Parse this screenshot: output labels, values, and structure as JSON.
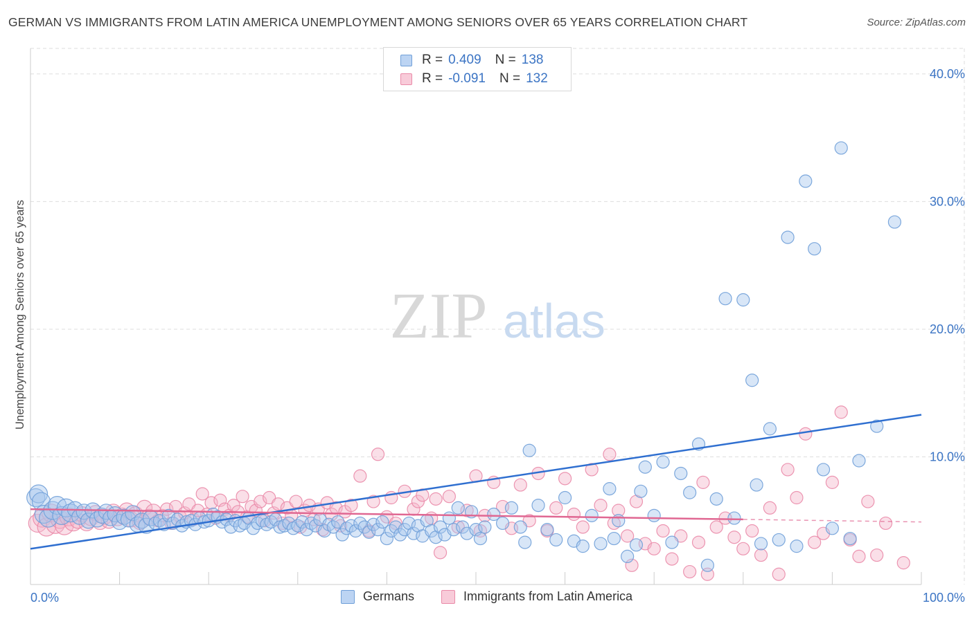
{
  "title": "GERMAN VS IMMIGRANTS FROM LATIN AMERICA UNEMPLOYMENT AMONG SENIORS OVER 65 YEARS CORRELATION CHART",
  "source": "Source: ZipAtlas.com",
  "watermark": {
    "zip": "ZIP",
    "atlas": "atlas"
  },
  "legend_top": [
    {
      "r_label": "R =",
      "r_value": "0.409",
      "n_label": "N =",
      "n_value": "138"
    },
    {
      "r_label": "R =",
      "r_value": "-0.091",
      "n_label": "N =",
      "n_value": "132"
    }
  ],
  "bottom_legend": [
    "Germans",
    "Immigrants from Latin America"
  ],
  "colors": {
    "blue_fill": "#a9c8ee",
    "blue_stroke": "#6f9fd8",
    "blue_line": "#2f6fd0",
    "pink_fill": "#f5b8cb",
    "pink_stroke": "#ea8aa8",
    "pink_line": "#e06792",
    "axis_text": "#3b74c4",
    "grid": "#dddddd"
  },
  "chart_data": {
    "type": "scatter",
    "title": "GERMAN VS IMMIGRANTS FROM LATIN AMERICA UNEMPLOYMENT AMONG SENIORS OVER 65 YEARS CORRELATION CHART",
    "xlabel": "",
    "ylabel": "Unemployment Among Seniors over 65 years",
    "xlim": [
      0,
      100
    ],
    "ylim": [
      0,
      42
    ],
    "x_tick_labels": [
      "0.0%",
      "100.0%"
    ],
    "y_ticks": [
      10,
      20,
      30,
      40
    ],
    "y_tick_labels": [
      "10.0%",
      "20.0%",
      "30.0%",
      "40.0%"
    ],
    "grid": true,
    "legend": "top-center",
    "series": [
      {
        "name": "Germans",
        "r": 0.409,
        "n": 138,
        "trend": {
          "x": [
            0,
            100
          ],
          "y": [
            2.8,
            13.3
          ],
          "dashed_from": null
        },
        "points": [
          [
            0.6,
            6.8
          ],
          [
            0.9,
            7.1
          ],
          [
            1.2,
            6.5
          ],
          [
            1.5,
            5.5
          ],
          [
            2,
            5.2
          ],
          [
            2.5,
            5.8
          ],
          [
            3,
            6.2
          ],
          [
            3.5,
            5.4
          ],
          [
            4,
            6.0
          ],
          [
            4.5,
            5.6
          ],
          [
            5,
            5.9
          ],
          [
            5.5,
            5.3
          ],
          [
            6,
            5.7
          ],
          [
            6.5,
            5.0
          ],
          [
            7,
            5.8
          ],
          [
            7.5,
            5.1
          ],
          [
            8,
            5.4
          ],
          [
            8.5,
            5.7
          ],
          [
            9,
            5.2
          ],
          [
            9.5,
            5.5
          ],
          [
            10,
            4.9
          ],
          [
            10.5,
            5.3
          ],
          [
            11,
            5.1
          ],
          [
            11.5,
            5.6
          ],
          [
            12,
            4.7
          ],
          [
            12.5,
            5.0
          ],
          [
            13,
            4.6
          ],
          [
            13.5,
            5.2
          ],
          [
            14,
            4.8
          ],
          [
            14.5,
            5.0
          ],
          [
            15,
            4.7
          ],
          [
            15.5,
            5.4
          ],
          [
            16,
            4.8
          ],
          [
            16.5,
            5.1
          ],
          [
            17,
            4.6
          ],
          [
            17.5,
            4.9
          ],
          [
            18,
            5.0
          ],
          [
            18.5,
            4.7
          ],
          [
            19,
            5.2
          ],
          [
            19.5,
            4.9
          ],
          [
            20,
            5.0
          ],
          [
            20.5,
            5.5
          ],
          [
            21,
            5.3
          ],
          [
            21.5,
            4.9
          ],
          [
            22,
            5.1
          ],
          [
            22.5,
            4.5
          ],
          [
            23,
            5.0
          ],
          [
            23.5,
            4.6
          ],
          [
            24,
            4.8
          ],
          [
            24.5,
            5.2
          ],
          [
            25,
            4.4
          ],
          [
            25.5,
            4.8
          ],
          [
            26,
            5.0
          ],
          [
            26.5,
            4.7
          ],
          [
            27,
            4.9
          ],
          [
            27.5,
            5.1
          ],
          [
            28,
            4.5
          ],
          [
            28.5,
            4.6
          ],
          [
            29,
            4.8
          ],
          [
            29.5,
            4.4
          ],
          [
            30,
            4.6
          ],
          [
            30.5,
            4.9
          ],
          [
            31,
            4.3
          ],
          [
            31.5,
            4.8
          ],
          [
            32,
            4.6
          ],
          [
            32.5,
            5.1
          ],
          [
            33,
            4.2
          ],
          [
            33.5,
            4.7
          ],
          [
            34,
            4.5
          ],
          [
            34.5,
            4.9
          ],
          [
            35,
            3.9
          ],
          [
            35.5,
            4.4
          ],
          [
            36,
            4.6
          ],
          [
            36.5,
            4.2
          ],
          [
            37,
            4.8
          ],
          [
            37.5,
            4.5
          ],
          [
            38,
            4.1
          ],
          [
            38.5,
            4.7
          ],
          [
            39,
            4.3
          ],
          [
            39.5,
            4.9
          ],
          [
            40,
            3.6
          ],
          [
            40.5,
            4.2
          ],
          [
            41,
            4.5
          ],
          [
            41.5,
            3.9
          ],
          [
            42,
            4.3
          ],
          [
            42.5,
            4.8
          ],
          [
            43,
            4.0
          ],
          [
            43.5,
            4.6
          ],
          [
            44,
            3.8
          ],
          [
            44.5,
            5.0
          ],
          [
            45,
            4.2
          ],
          [
            45.5,
            3.7
          ],
          [
            46,
            4.5
          ],
          [
            46.5,
            3.9
          ],
          [
            47,
            5.2
          ],
          [
            47.5,
            4.3
          ],
          [
            48,
            6.0
          ],
          [
            48.5,
            4.5
          ],
          [
            49,
            4.0
          ],
          [
            49.5,
            5.7
          ],
          [
            50,
            4.3
          ],
          [
            50.5,
            3.6
          ],
          [
            51,
            4.5
          ],
          [
            52,
            5.5
          ],
          [
            53,
            4.8
          ],
          [
            54,
            6.0
          ],
          [
            55,
            4.5
          ],
          [
            55.5,
            3.3
          ],
          [
            56,
            10.5
          ],
          [
            57,
            6.2
          ],
          [
            58,
            4.3
          ],
          [
            59,
            3.5
          ],
          [
            60,
            6.8
          ],
          [
            61,
            3.4
          ],
          [
            62,
            3.0
          ],
          [
            63,
            5.4
          ],
          [
            64,
            3.2
          ],
          [
            65,
            7.5
          ],
          [
            65.5,
            3.6
          ],
          [
            66,
            5.0
          ],
          [
            67,
            2.2
          ],
          [
            68,
            3.1
          ],
          [
            68.5,
            7.3
          ],
          [
            69,
            9.2
          ],
          [
            70,
            5.4
          ],
          [
            71,
            9.6
          ],
          [
            72,
            3.3
          ],
          [
            73,
            8.7
          ],
          [
            74,
            7.2
          ],
          [
            75,
            11.0
          ],
          [
            76,
            1.5
          ],
          [
            77,
            6.7
          ],
          [
            78,
            22.4
          ],
          [
            79,
            5.2
          ],
          [
            80,
            22.3
          ],
          [
            81,
            16.0
          ],
          [
            81.5,
            7.8
          ],
          [
            82,
            3.2
          ],
          [
            83,
            12.2
          ],
          [
            84,
            3.5
          ],
          [
            85,
            27.2
          ],
          [
            86,
            3.0
          ],
          [
            87,
            31.6
          ],
          [
            88,
            26.3
          ],
          [
            89,
            9.0
          ],
          [
            90,
            4.4
          ],
          [
            91,
            34.2
          ],
          [
            92,
            3.6
          ],
          [
            93,
            9.7
          ],
          [
            95,
            12.4
          ],
          [
            97,
            28.4
          ]
        ]
      },
      {
        "name": "Immigrants from Latin America",
        "r": -0.091,
        "n": 132,
        "trend": {
          "x": [
            0,
            100
          ],
          "y": [
            5.9,
            4.9
          ],
          "dashed_from": 80
        },
        "points": [
          [
            0.8,
            4.8
          ],
          [
            1.3,
            5.2
          ],
          [
            1.8,
            4.5
          ],
          [
            2.3,
            5.6
          ],
          [
            2.8,
            4.7
          ],
          [
            3.3,
            5.1
          ],
          [
            3.8,
            4.6
          ],
          [
            4.3,
            5.3
          ],
          [
            4.8,
            4.9
          ],
          [
            5.3,
            5.0
          ],
          [
            5.8,
            5.5
          ],
          [
            6.3,
            4.8
          ],
          [
            6.8,
            5.2
          ],
          [
            7.3,
            5.6
          ],
          [
            7.8,
            4.9
          ],
          [
            8.3,
            5.3
          ],
          [
            8.8,
            5.0
          ],
          [
            9.3,
            5.7
          ],
          [
            9.8,
            5.2
          ],
          [
            10.3,
            5.4
          ],
          [
            10.8,
            5.8
          ],
          [
            11.3,
            5.1
          ],
          [
            11.8,
            5.5
          ],
          [
            12.3,
            4.9
          ],
          [
            12.8,
            6.0
          ],
          [
            13.3,
            5.3
          ],
          [
            13.8,
            5.7
          ],
          [
            14.3,
            5.0
          ],
          [
            14.8,
            5.4
          ],
          [
            15.3,
            5.9
          ],
          [
            15.8,
            4.8
          ],
          [
            16.3,
            6.1
          ],
          [
            16.8,
            5.3
          ],
          [
            17.3,
            5.6
          ],
          [
            17.8,
            6.3
          ],
          [
            18.3,
            5.1
          ],
          [
            18.8,
            5.8
          ],
          [
            19.3,
            7.1
          ],
          [
            19.8,
            5.5
          ],
          [
            20.3,
            6.4
          ],
          [
            20.8,
            5.2
          ],
          [
            21.3,
            6.6
          ],
          [
            21.8,
            5.9
          ],
          [
            22.3,
            5.4
          ],
          [
            22.8,
            6.2
          ],
          [
            23.3,
            5.7
          ],
          [
            23.8,
            6.9
          ],
          [
            24.3,
            5.3
          ],
          [
            24.8,
            6.1
          ],
          [
            25.3,
            5.8
          ],
          [
            25.8,
            6.5
          ],
          [
            26.3,
            5.0
          ],
          [
            26.8,
            6.8
          ],
          [
            27.3,
            5.6
          ],
          [
            27.8,
            6.3
          ],
          [
            28.3,
            4.8
          ],
          [
            28.8,
            6.0
          ],
          [
            29.3,
            5.4
          ],
          [
            29.8,
            6.5
          ],
          [
            30.3,
            4.5
          ],
          [
            30.8,
            5.8
          ],
          [
            31.3,
            6.2
          ],
          [
            31.8,
            5.1
          ],
          [
            32.3,
            5.9
          ],
          [
            32.8,
            4.3
          ],
          [
            33.3,
            6.4
          ],
          [
            33.8,
            5.5
          ],
          [
            34.3,
            6.0
          ],
          [
            34.8,
            4.6
          ],
          [
            35.3,
            5.7
          ],
          [
            36,
            6.2
          ],
          [
            37,
            8.5
          ],
          [
            38,
            4.2
          ],
          [
            38.5,
            6.5
          ],
          [
            39,
            10.2
          ],
          [
            40,
            5.3
          ],
          [
            40.5,
            6.8
          ],
          [
            41,
            4.8
          ],
          [
            42,
            7.3
          ],
          [
            43,
            5.9
          ],
          [
            43.5,
            6.5
          ],
          [
            44,
            7.0
          ],
          [
            45,
            5.2
          ],
          [
            45.5,
            6.7
          ],
          [
            46,
            2.5
          ],
          [
            47,
            6.9
          ],
          [
            48,
            4.5
          ],
          [
            49,
            5.8
          ],
          [
            50,
            8.5
          ],
          [
            50.5,
            4.2
          ],
          [
            51,
            5.4
          ],
          [
            52,
            8.0
          ],
          [
            53,
            6.1
          ],
          [
            54,
            4.4
          ],
          [
            55,
            7.8
          ],
          [
            56,
            5.0
          ],
          [
            57,
            8.7
          ],
          [
            58,
            4.2
          ],
          [
            59,
            6.0
          ],
          [
            60,
            8.3
          ],
          [
            61,
            5.5
          ],
          [
            62,
            4.5
          ],
          [
            63,
            9.0
          ],
          [
            64,
            6.2
          ],
          [
            65,
            10.2
          ],
          [
            65.5,
            4.8
          ],
          [
            66,
            5.8
          ],
          [
            67,
            3.8
          ],
          [
            67.5,
            1.5
          ],
          [
            68,
            6.5
          ],
          [
            69,
            3.2
          ],
          [
            70,
            2.8
          ],
          [
            71,
            4.2
          ],
          [
            72,
            2.0
          ],
          [
            73,
            3.8
          ],
          [
            74,
            1.0
          ],
          [
            75,
            3.3
          ],
          [
            75.5,
            8.0
          ],
          [
            76,
            0.8
          ],
          [
            77,
            4.5
          ],
          [
            78,
            5.2
          ],
          [
            79,
            3.7
          ],
          [
            80,
            2.8
          ],
          [
            81,
            4.2
          ],
          [
            82,
            2.3
          ],
          [
            83,
            6.0
          ],
          [
            84,
            0.8
          ],
          [
            85,
            9.0
          ],
          [
            86,
            6.8
          ],
          [
            87,
            11.8
          ],
          [
            88,
            3.3
          ],
          [
            89,
            4.0
          ],
          [
            90,
            8.0
          ],
          [
            91,
            13.5
          ],
          [
            92,
            3.5
          ],
          [
            93,
            2.2
          ],
          [
            94,
            6.5
          ],
          [
            95,
            2.3
          ],
          [
            96,
            4.8
          ],
          [
            98,
            1.7
          ]
        ]
      }
    ]
  }
}
